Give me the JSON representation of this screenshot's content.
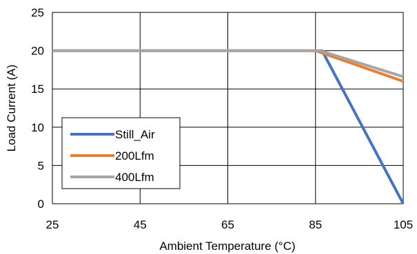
{
  "chart_data": {
    "type": "line",
    "xlabel": "Ambient Temperature (°C)",
    "ylabel": "Load Current (A)",
    "xlim": [
      25,
      105
    ],
    "ylim": [
      0,
      25
    ],
    "x_ticks": [
      "25",
      "45",
      "65",
      "85",
      "105"
    ],
    "y_ticks": [
      "0",
      "5",
      "10",
      "15",
      "20",
      "25"
    ],
    "grid": true,
    "legend_position": "bottom-left",
    "series": [
      {
        "name": "Still_Air",
        "color": "#4472C4",
        "points": [
          [
            25,
            20
          ],
          [
            86.5,
            20
          ],
          [
            105,
            0
          ]
        ]
      },
      {
        "name": "200Lfm",
        "color": "#ED7D31",
        "points": [
          [
            25,
            20
          ],
          [
            85,
            20
          ],
          [
            105,
            16
          ]
        ]
      },
      {
        "name": "400Lfm",
        "color": "#A5A5A5",
        "points": [
          [
            25,
            20
          ],
          [
            86,
            20
          ],
          [
            105,
            16.6
          ]
        ]
      }
    ]
  }
}
